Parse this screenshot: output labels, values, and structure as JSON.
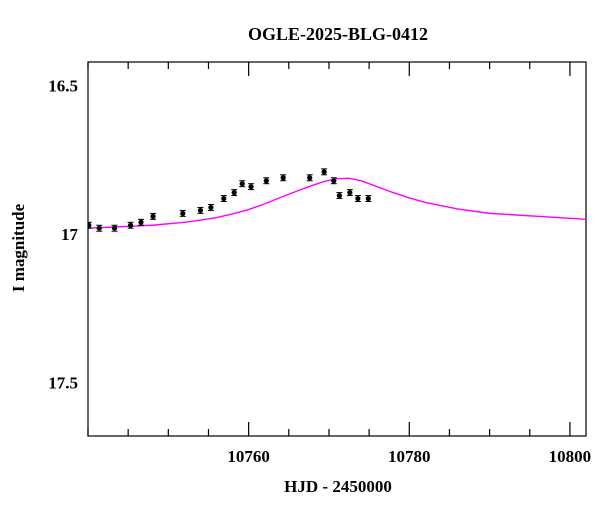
{
  "chart_data": {
    "type": "scatter",
    "title": "OGLE-2025-BLG-0412",
    "xlabel": "HJD - 2450000",
    "ylabel": "I magnitude",
    "xlim": [
      10740,
      10802
    ],
    "ylim": [
      17.68,
      16.42
    ],
    "y_inverted": true,
    "grid": false,
    "x_ticks": [
      10760,
      10780,
      10800
    ],
    "y_ticks": [
      16.5,
      17,
      17.5
    ],
    "x_tick_labels": [
      "10760",
      "10780",
      "10800"
    ],
    "y_tick_labels": [
      "16.5",
      "17",
      "17.5"
    ],
    "series": [
      {
        "kind": "points",
        "color": "#000000",
        "x": [
          10740.1,
          10741.4,
          10743.3,
          10745.3,
          10746.6,
          10748.1,
          10751.8,
          10754.0,
          10755.3,
          10756.9,
          10758.2,
          10759.2,
          10760.3,
          10762.2,
          10764.3,
          10767.6,
          10769.4,
          10770.6,
          10771.3,
          10772.6,
          10773.6,
          10774.9
        ],
        "y": [
          16.97,
          16.98,
          16.98,
          16.97,
          16.96,
          16.94,
          16.93,
          16.92,
          16.91,
          16.88,
          16.86,
          16.83,
          16.84,
          16.82,
          16.81,
          16.81,
          16.79,
          16.82,
          16.87,
          16.86,
          16.88,
          16.88
        ],
        "yerr": [
          0.01,
          0.01,
          0.01,
          0.01,
          0.01,
          0.01,
          0.01,
          0.01,
          0.01,
          0.01,
          0.01,
          0.01,
          0.01,
          0.01,
          0.01,
          0.01,
          0.01,
          0.01,
          0.01,
          0.01,
          0.01,
          0.01
        ]
      },
      {
        "kind": "model",
        "color": "#ff00ff",
        "x": [
          10740,
          10744,
          10748,
          10752,
          10754,
          10756,
          10758,
          10760,
          10762,
          10764,
          10766,
          10768,
          10769.5,
          10771,
          10772.5,
          10774,
          10776,
          10778,
          10780,
          10782,
          10786,
          10790,
          10802
        ],
        "y": [
          16.98,
          16.975,
          16.97,
          16.96,
          16.953,
          16.944,
          16.932,
          16.917,
          16.898,
          16.876,
          16.855,
          16.835,
          16.822,
          16.813,
          16.812,
          16.82,
          16.84,
          16.86,
          16.878,
          16.893,
          16.915,
          16.93,
          16.95
        ]
      }
    ]
  }
}
